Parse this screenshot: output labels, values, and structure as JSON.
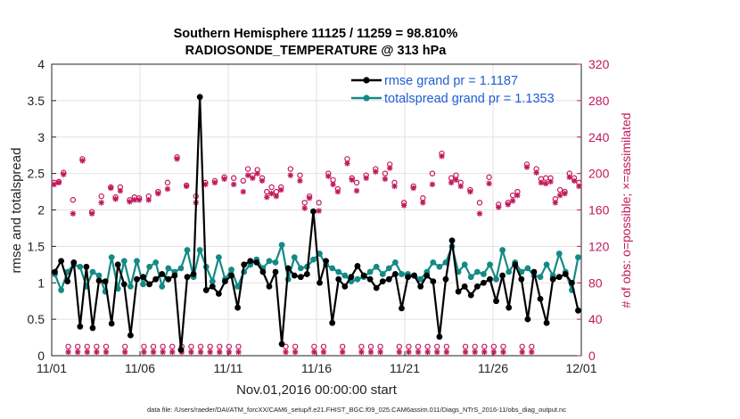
{
  "chart_data": {
    "type": "line",
    "title": [
      "Southern Hemisphere 11125 / 11259 = 98.810%",
      "RADIOSONDE_TEMPERATURE @ 313 hPa"
    ],
    "xlabel": "Nov.01,2016 00:00:00 start",
    "ylabel_left": "rmse and totalspread",
    "ylabel_right": "# of obs: o=possible; ×=assimilated",
    "footnote": "data file: /Users/raeder/DAI/ATM_forcXX/CAM6_setup/f.e21.FHIST_BGC.f09_025.CAM6assim.011/Diags_NTrS_2016-11/obs_diag_output.nc",
    "xlim": [
      0,
      30
    ],
    "ylim_left": [
      0,
      4
    ],
    "ylim_right": [
      0,
      320
    ],
    "x_ticks": [
      {
        "value": 0,
        "label": "11/01"
      },
      {
        "value": 5,
        "label": "11/06"
      },
      {
        "value": 10,
        "label": "11/11"
      },
      {
        "value": 15,
        "label": "11/16"
      },
      {
        "value": 20,
        "label": "11/21"
      },
      {
        "value": 25,
        "label": "11/26"
      },
      {
        "value": 30,
        "label": "12/01"
      }
    ],
    "y_ticks_left": [
      "0",
      "0.5",
      "1",
      "1.5",
      "2",
      "2.5",
      "3",
      "3.5",
      "4"
    ],
    "y_ticks_right": [
      "0",
      "40",
      "80",
      "120",
      "160",
      "200",
      "240",
      "280",
      "320"
    ],
    "colors": {
      "rmse": "#000000",
      "spread": "#138a86",
      "obs": "#c2185b",
      "grid": "#e2e2e2",
      "legend_text": "#1f5fd6"
    },
    "legend": [
      {
        "label": "rmse grand pr = 1.1187",
        "series": "rmse"
      },
      {
        "label": "totalspread grand pr = 1.1353",
        "series": "spread"
      }
    ],
    "series": [
      {
        "name": "rmse",
        "values": [
          1.15,
          1.3,
          1.02,
          1.28,
          0.4,
          1.22,
          0.38,
          1.03,
          1.02,
          0.44,
          1.25,
          0.98,
          0.28,
          1.05,
          1.08,
          0.98,
          1.05,
          1.12,
          1.05,
          1.1,
          0.08,
          1.08,
          1.12,
          3.55,
          0.9,
          0.95,
          0.85,
          1.02,
          1.1,
          0.66,
          1.25,
          1.3,
          1.28,
          1.15,
          0.95,
          1.15,
          0.16,
          1.2,
          1.1,
          1.08,
          1.12,
          1.98,
          1.0,
          1.3,
          0.45,
          1.05,
          0.95,
          1.08,
          1.23,
          1.1,
          1.05,
          0.93,
          1.02,
          1.05,
          1.12,
          0.65,
          1.08,
          1.1,
          0.95,
          1.1,
          1.02,
          0.26,
          1.05,
          1.58,
          0.88,
          0.95,
          0.83,
          0.95,
          1.0,
          1.05,
          0.75,
          1.1,
          0.66,
          1.25,
          1.05,
          0.5,
          1.15,
          0.78,
          0.45,
          1.05,
          1.08,
          1.12,
          1.0,
          0.62
        ]
      },
      {
        "name": "spread",
        "values": [
          1.12,
          0.9,
          1.15,
          1.25,
          1.22,
          0.95,
          1.15,
          1.1,
          0.88,
          1.35,
          0.92,
          1.3,
          0.95,
          1.3,
          0.98,
          1.22,
          1.28,
          0.95,
          1.2,
          1.15,
          1.2,
          1.45,
          1.08,
          1.45,
          1.22,
          1.02,
          1.35,
          1.05,
          1.18,
          0.95,
          1.15,
          1.25,
          1.32,
          1.2,
          1.3,
          1.28,
          1.52,
          1.05,
          1.35,
          1.2,
          1.22,
          1.32,
          1.4,
          1.25,
          1.2,
          1.15,
          1.1,
          1.02,
          1.05,
          1.08,
          1.15,
          1.22,
          1.12,
          1.2,
          1.28,
          1.12,
          1.12,
          1.1,
          1.05,
          1.15,
          1.28,
          1.22,
          1.28,
          1.5,
          1.15,
          1.25,
          1.08,
          1.15,
          1.12,
          1.25,
          1.05,
          1.45,
          1.15,
          1.28,
          1.15,
          1.2,
          1.1,
          1.08,
          1.25,
          1.1,
          1.4,
          1.15,
          0.9,
          1.35
        ]
      },
      {
        "name": "possible",
        "values": [
          190,
          191,
          201,
          10,
          171,
          10,
          216,
          10,
          158,
          10,
          175,
          10,
          185,
          174,
          185,
          10,
          171,
          174,
          173,
          10,
          175,
          10,
          180,
          10,
          190,
          10,
          218,
          10,
          187,
          10,
          175,
          10,
          190,
          10,
          192,
          10,
          196,
          10,
          195,
          10,
          192,
          205,
          198,
          204,
          195,
          180,
          185,
          180,
          185,
          10,
          205,
          10,
          198,
          168,
          175,
          10,
          168,
          10,
          200,
          193,
          183,
          10,
          216,
          195,
          190,
          10,
          198,
          10,
          205,
          10,
          200,
          210,
          190,
          10,
          168,
          10,
          186,
          10,
          173,
          10,
          200,
          10,
          222,
          10,
          195,
          198,
          190,
          10,
          182,
          10,
          168,
          10,
          196,
          10,
          166,
          10,
          168,
          176,
          180,
          10,
          210,
          10,
          205,
          194,
          195,
          195,
          172,
          182,
          180,
          200,
          195,
          190
        ]
      },
      {
        "name": "assimilated",
        "values": [
          188,
          190,
          199,
          4,
          156,
          4,
          214,
          4,
          156,
          4,
          168,
          4,
          184,
          172,
          181,
          4,
          169,
          171,
          171,
          4,
          171,
          4,
          178,
          4,
          183,
          4,
          216,
          4,
          186,
          4,
          168,
          4,
          188,
          4,
          190,
          4,
          194,
          4,
          188,
          4,
          180,
          198,
          195,
          200,
          192,
          174,
          178,
          175,
          182,
          4,
          198,
          4,
          192,
          162,
          173,
          4,
          159,
          4,
          197,
          188,
          180,
          4,
          211,
          193,
          181,
          4,
          195,
          4,
          202,
          4,
          194,
          206,
          186,
          4,
          165,
          4,
          184,
          4,
          168,
          4,
          188,
          4,
          219,
          4,
          190,
          193,
          186,
          4,
          180,
          4,
          156,
          4,
          189,
          4,
          163,
          4,
          166,
          170,
          176,
          4,
          207,
          4,
          201,
          190,
          189,
          191,
          168,
          176,
          178,
          196,
          192,
          186
        ]
      }
    ]
  }
}
